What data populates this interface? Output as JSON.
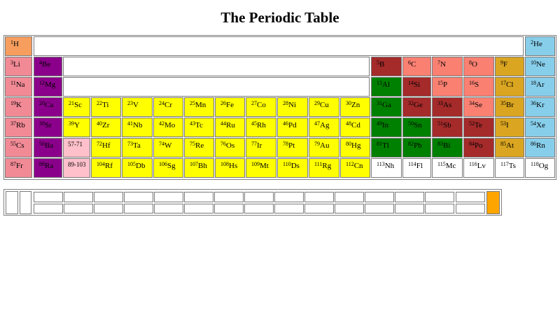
{
  "title": "The Periodic Table",
  "colors": {
    "hydrogen": "#f79e5e",
    "alkali": "#f28a96",
    "alkaline_earth": "#8b008b",
    "transition": "#ffff00",
    "range": "#ffc0cb",
    "post_transition": "#008000",
    "metalloid": "#a52a2a",
    "nonmetal": "#fa8072",
    "halogen": "#daa520",
    "noble": "#87ceeb",
    "unknown": "#ffffff",
    "marker": "#ffa500"
  },
  "elements": [
    {
      "n": "1",
      "s": "H",
      "row": 0,
      "col": 0,
      "cat": "hydrogen"
    },
    {
      "n": "2",
      "s": "He",
      "row": 0,
      "col": 17,
      "cat": "noble"
    },
    {
      "n": "3",
      "s": "Li",
      "row": 1,
      "col": 0,
      "cat": "alkali"
    },
    {
      "n": "4",
      "s": "Be",
      "row": 1,
      "col": 1,
      "cat": "alkaline_earth"
    },
    {
      "n": "5",
      "s": "B",
      "row": 1,
      "col": 12,
      "cat": "metalloid"
    },
    {
      "n": "6",
      "s": "C",
      "row": 1,
      "col": 13,
      "cat": "nonmetal"
    },
    {
      "n": "7",
      "s": "N",
      "row": 1,
      "col": 14,
      "cat": "nonmetal"
    },
    {
      "n": "8",
      "s": "O",
      "row": 1,
      "col": 15,
      "cat": "nonmetal"
    },
    {
      "n": "9",
      "s": "F",
      "row": 1,
      "col": 16,
      "cat": "halogen"
    },
    {
      "n": "10",
      "s": "Ne",
      "row": 1,
      "col": 17,
      "cat": "noble"
    },
    {
      "n": "11",
      "s": "Na",
      "row": 2,
      "col": 0,
      "cat": "alkali"
    },
    {
      "n": "12",
      "s": "Mg",
      "row": 2,
      "col": 1,
      "cat": "alkaline_earth"
    },
    {
      "n": "13",
      "s": "Al",
      "row": 2,
      "col": 12,
      "cat": "post_transition"
    },
    {
      "n": "14",
      "s": "Si",
      "row": 2,
      "col": 13,
      "cat": "metalloid"
    },
    {
      "n": "15",
      "s": "P",
      "row": 2,
      "col": 14,
      "cat": "nonmetal"
    },
    {
      "n": "16",
      "s": "S",
      "row": 2,
      "col": 15,
      "cat": "nonmetal"
    },
    {
      "n": "17",
      "s": "Cl",
      "row": 2,
      "col": 16,
      "cat": "halogen"
    },
    {
      "n": "18",
      "s": "Ar",
      "row": 2,
      "col": 17,
      "cat": "noble"
    },
    {
      "n": "19",
      "s": "K",
      "row": 3,
      "col": 0,
      "cat": "alkali"
    },
    {
      "n": "20",
      "s": "Ca",
      "row": 3,
      "col": 1,
      "cat": "alkaline_earth"
    },
    {
      "n": "21",
      "s": "Sc",
      "row": 3,
      "col": 2,
      "cat": "transition"
    },
    {
      "n": "22",
      "s": "Ti",
      "row": 3,
      "col": 3,
      "cat": "transition"
    },
    {
      "n": "23",
      "s": "V",
      "row": 3,
      "col": 4,
      "cat": "transition"
    },
    {
      "n": "24",
      "s": "Cr",
      "row": 3,
      "col": 5,
      "cat": "transition"
    },
    {
      "n": "25",
      "s": "Mn",
      "row": 3,
      "col": 6,
      "cat": "transition"
    },
    {
      "n": "26",
      "s": "Fe",
      "row": 3,
      "col": 7,
      "cat": "transition"
    },
    {
      "n": "27",
      "s": "Co",
      "row": 3,
      "col": 8,
      "cat": "transition"
    },
    {
      "n": "28",
      "s": "Ni",
      "row": 3,
      "col": 9,
      "cat": "transition"
    },
    {
      "n": "29",
      "s": "Cu",
      "row": 3,
      "col": 10,
      "cat": "transition"
    },
    {
      "n": "30",
      "s": "Zn",
      "row": 3,
      "col": 11,
      "cat": "transition"
    },
    {
      "n": "31",
      "s": "Ga",
      "row": 3,
      "col": 12,
      "cat": "post_transition"
    },
    {
      "n": "32",
      "s": "Ge",
      "row": 3,
      "col": 13,
      "cat": "metalloid"
    },
    {
      "n": "33",
      "s": "As",
      "row": 3,
      "col": 14,
      "cat": "metalloid"
    },
    {
      "n": "34",
      "s": "Se",
      "row": 3,
      "col": 15,
      "cat": "nonmetal"
    },
    {
      "n": "35",
      "s": "Br",
      "row": 3,
      "col": 16,
      "cat": "halogen"
    },
    {
      "n": "36",
      "s": "Kr",
      "row": 3,
      "col": 17,
      "cat": "noble"
    },
    {
      "n": "37",
      "s": "Rb",
      "row": 4,
      "col": 0,
      "cat": "alkali"
    },
    {
      "n": "38",
      "s": "Sr",
      "row": 4,
      "col": 1,
      "cat": "alkaline_earth"
    },
    {
      "n": "39",
      "s": "Y",
      "row": 4,
      "col": 2,
      "cat": "transition"
    },
    {
      "n": "40",
      "s": "Zr",
      "row": 4,
      "col": 3,
      "cat": "transition"
    },
    {
      "n": "41",
      "s": "Nb",
      "row": 4,
      "col": 4,
      "cat": "transition"
    },
    {
      "n": "42",
      "s": "Mo",
      "row": 4,
      "col": 5,
      "cat": "transition"
    },
    {
      "n": "43",
      "s": "Tc",
      "row": 4,
      "col": 6,
      "cat": "transition"
    },
    {
      "n": "44",
      "s": "Ru",
      "row": 4,
      "col": 7,
      "cat": "transition"
    },
    {
      "n": "45",
      "s": "Rh",
      "row": 4,
      "col": 8,
      "cat": "transition"
    },
    {
      "n": "46",
      "s": "Pd",
      "row": 4,
      "col": 9,
      "cat": "transition"
    },
    {
      "n": "47",
      "s": "Ag",
      "row": 4,
      "col": 10,
      "cat": "transition"
    },
    {
      "n": "48",
      "s": "Cd",
      "row": 4,
      "col": 11,
      "cat": "transition"
    },
    {
      "n": "49",
      "s": "In",
      "row": 4,
      "col": 12,
      "cat": "post_transition"
    },
    {
      "n": "50",
      "s": "Sn",
      "row": 4,
      "col": 13,
      "cat": "post_transition"
    },
    {
      "n": "51",
      "s": "Sb",
      "row": 4,
      "col": 14,
      "cat": "metalloid"
    },
    {
      "n": "52",
      "s": "Te",
      "row": 4,
      "col": 15,
      "cat": "metalloid"
    },
    {
      "n": "53",
      "s": "I",
      "row": 4,
      "col": 16,
      "cat": "halogen"
    },
    {
      "n": "54",
      "s": "Xe",
      "row": 4,
      "col": 17,
      "cat": "noble"
    },
    {
      "n": "55",
      "s": "Cs",
      "row": 5,
      "col": 0,
      "cat": "alkali"
    },
    {
      "n": "56",
      "s": "Ba",
      "row": 5,
      "col": 1,
      "cat": "alkaline_earth"
    },
    {
      "n": "",
      "s": "57-71",
      "row": 5,
      "col": 2,
      "cat": "range"
    },
    {
      "n": "72",
      "s": "Hf",
      "row": 5,
      "col": 3,
      "cat": "transition"
    },
    {
      "n": "73",
      "s": "Ta",
      "row": 5,
      "col": 4,
      "cat": "transition"
    },
    {
      "n": "74",
      "s": "W",
      "row": 5,
      "col": 5,
      "cat": "transition"
    },
    {
      "n": "75",
      "s": "Re",
      "row": 5,
      "col": 6,
      "cat": "transition"
    },
    {
      "n": "76",
      "s": "Os",
      "row": 5,
      "col": 7,
      "cat": "transition"
    },
    {
      "n": "77",
      "s": "Ir",
      "row": 5,
      "col": 8,
      "cat": "transition"
    },
    {
      "n": "78",
      "s": "Pt",
      "row": 5,
      "col": 9,
      "cat": "transition"
    },
    {
      "n": "79",
      "s": "Au",
      "row": 5,
      "col": 10,
      "cat": "transition"
    },
    {
      "n": "80",
      "s": "Hg",
      "row": 5,
      "col": 11,
      "cat": "transition"
    },
    {
      "n": "81",
      "s": "Tl",
      "row": 5,
      "col": 12,
      "cat": "post_transition"
    },
    {
      "n": "82",
      "s": "Pb",
      "row": 5,
      "col": 13,
      "cat": "post_transition"
    },
    {
      "n": "83",
      "s": "Bi",
      "row": 5,
      "col": 14,
      "cat": "post_transition"
    },
    {
      "n": "84",
      "s": "Po",
      "row": 5,
      "col": 15,
      "cat": "metalloid"
    },
    {
      "n": "85",
      "s": "At",
      "row": 5,
      "col": 16,
      "cat": "halogen"
    },
    {
      "n": "86",
      "s": "Rn",
      "row": 5,
      "col": 17,
      "cat": "noble"
    },
    {
      "n": "87",
      "s": "Fr",
      "row": 6,
      "col": 0,
      "cat": "alkali"
    },
    {
      "n": "88",
      "s": "Ra",
      "row": 6,
      "col": 1,
      "cat": "alkaline_earth"
    },
    {
      "n": "",
      "s": "89-103",
      "row": 6,
      "col": 2,
      "cat": "range"
    },
    {
      "n": "104",
      "s": "Rf",
      "row": 6,
      "col": 3,
      "cat": "transition"
    },
    {
      "n": "105",
      "s": "Db",
      "row": 6,
      "col": 4,
      "cat": "transition"
    },
    {
      "n": "106",
      "s": "Sg",
      "row": 6,
      "col": 5,
      "cat": "transition"
    },
    {
      "n": "107",
      "s": "Bh",
      "row": 6,
      "col": 6,
      "cat": "transition"
    },
    {
      "n": "108",
      "s": "Hs",
      "row": 6,
      "col": 7,
      "cat": "transition"
    },
    {
      "n": "109",
      "s": "Mt",
      "row": 6,
      "col": 8,
      "cat": "transition"
    },
    {
      "n": "110",
      "s": "Ds",
      "row": 6,
      "col": 9,
      "cat": "transition"
    },
    {
      "n": "111",
      "s": "Rg",
      "row": 6,
      "col": 10,
      "cat": "transition"
    },
    {
      "n": "112",
      "s": "Cn",
      "row": 6,
      "col": 11,
      "cat": "transition"
    },
    {
      "n": "113",
      "s": "Nh",
      "row": 6,
      "col": 12,
      "cat": "unknown"
    },
    {
      "n": "114",
      "s": "Fl",
      "row": 6,
      "col": 13,
      "cat": "unknown"
    },
    {
      "n": "115",
      "s": "Mc",
      "row": 6,
      "col": 14,
      "cat": "unknown"
    },
    {
      "n": "116",
      "s": "Lv",
      "row": 6,
      "col": 15,
      "cat": "unknown"
    },
    {
      "n": "117",
      "s": "Ts",
      "row": 6,
      "col": 16,
      "cat": "unknown"
    },
    {
      "n": "118",
      "s": "Og",
      "row": 6,
      "col": 17,
      "cat": "unknown"
    }
  ]
}
